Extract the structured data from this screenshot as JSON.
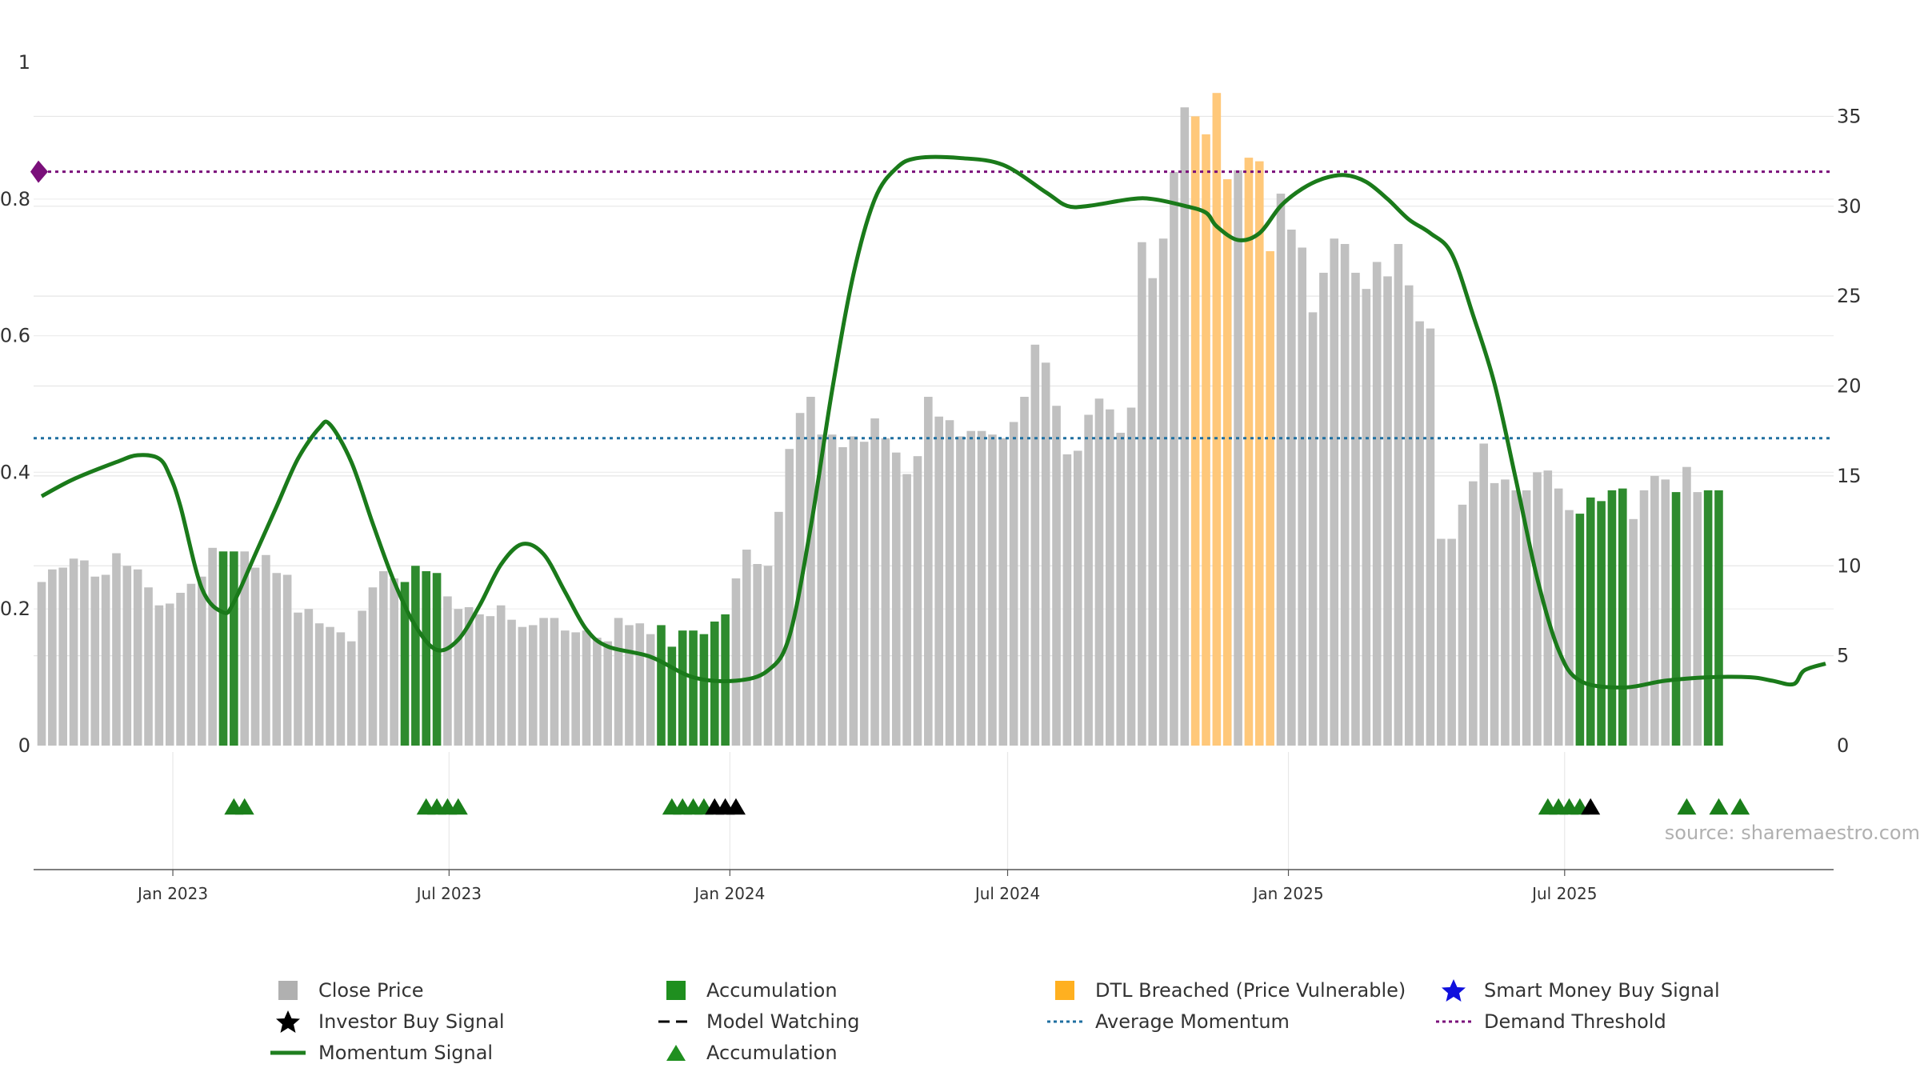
{
  "chart_data": {
    "type": "bar",
    "left_axis": {
      "ylim": [
        0,
        1
      ],
      "ticks": [
        "0",
        "0.2",
        "0.4",
        "0.6",
        "0.8",
        "1"
      ]
    },
    "right_axis": {
      "ylim": [
        0,
        38
      ],
      "ticks": [
        "0",
        "5",
        "10",
        "15",
        "20",
        "25",
        "30",
        "35"
      ]
    },
    "x_axis": {
      "ticks": [
        "Jan 2023",
        "Jul 2023",
        "Jan 2024",
        "Jul 2024",
        "Jan 2025",
        "Jul 2025"
      ]
    },
    "grid": true,
    "bars": {
      "start_date": "2022-10-07",
      "step_days": 7,
      "values": [
        9.1,
        9.8,
        9.9,
        10.4,
        10.3,
        9.4,
        9.5,
        10.7,
        10.0,
        9.8,
        8.8,
        7.8,
        7.9,
        8.5,
        9.0,
        9.4,
        11.0,
        10.8,
        10.8,
        10.8,
        9.9,
        10.6,
        9.6,
        9.5,
        7.4,
        7.6,
        6.8,
        6.6,
        6.3,
        5.8,
        7.5,
        8.8,
        9.7,
        9.3,
        9.1,
        10.0,
        9.7,
        9.6,
        8.3,
        7.6,
        7.7,
        7.3,
        7.2,
        7.8,
        7.0,
        6.6,
        6.7,
        7.1,
        7.1,
        6.4,
        6.3,
        6.4,
        6.0,
        5.8,
        7.1,
        6.7,
        6.8,
        6.2,
        6.7,
        5.5,
        6.4,
        6.4,
        6.2,
        6.9,
        7.3,
        9.3,
        10.9,
        10.1,
        10.0,
        13.0,
        16.5,
        18.5,
        19.4,
        17.3,
        17.3,
        16.6,
        17.2,
        16.9,
        18.2,
        17.1,
        16.3,
        15.1,
        16.1,
        19.4,
        18.3,
        18.1,
        17.2,
        17.5,
        17.5,
        17.3,
        17.1,
        18.0,
        19.4,
        22.3,
        21.3,
        18.9,
        16.2,
        16.4,
        18.4,
        19.3,
        18.7,
        17.4,
        18.8,
        28.0,
        26.0,
        28.2,
        31.9,
        35.5,
        35.0,
        34.0,
        36.3,
        31.5,
        32.0,
        32.7,
        32.5,
        27.5,
        30.7,
        28.7,
        27.7,
        24.1,
        26.3,
        28.2,
        27.9,
        26.3,
        25.4,
        26.9,
        26.1,
        27.9,
        25.6,
        23.6,
        23.2,
        11.5,
        11.5,
        13.4,
        14.7,
        16.8,
        14.6,
        14.8,
        14.2,
        14.2,
        15.2,
        15.3,
        14.3,
        13.1,
        12.9,
        13.8,
        13.6,
        14.2,
        14.3,
        12.6,
        14.2,
        15.0,
        14.8,
        14.1,
        15.5,
        14.1,
        14.2,
        14.2
      ],
      "colors": {
        "Close Price": "#c0c0c0",
        "Accumulation": "#2e8b2e",
        "DTL Breached (Price Vulnerable)": "#ffc87a"
      },
      "accumulation_ranges": [
        [
          17,
          18
        ],
        [
          34,
          37
        ],
        [
          58,
          64
        ],
        [
          144,
          148
        ],
        [
          153,
          153
        ],
        [
          156,
          157
        ]
      ],
      "dtl_ranges": [
        [
          108,
          111
        ],
        [
          113,
          115
        ]
      ]
    },
    "momentum": {
      "points": [
        [
          "2022-10-07",
          0.365
        ],
        [
          "2022-10-28",
          0.39
        ],
        [
          "2022-11-25",
          0.415
        ],
        [
          "2022-12-09",
          0.425
        ],
        [
          "2022-12-23",
          0.42
        ],
        [
          "2022-12-30",
          0.395
        ],
        [
          "2023-01-06",
          0.35
        ],
        [
          "2023-01-20",
          0.23
        ],
        [
          "2023-02-03",
          0.195
        ],
        [
          "2023-02-10",
          0.21
        ],
        [
          "2023-02-24",
          0.28
        ],
        [
          "2023-03-10",
          0.35
        ],
        [
          "2023-03-24",
          0.42
        ],
        [
          "2023-04-07",
          0.465
        ],
        [
          "2023-04-14",
          0.47
        ],
        [
          "2023-04-28",
          0.415
        ],
        [
          "2023-05-12",
          0.325
        ],
        [
          "2023-05-26",
          0.24
        ],
        [
          "2023-06-09",
          0.175
        ],
        [
          "2023-06-23",
          0.14
        ],
        [
          "2023-07-07",
          0.155
        ],
        [
          "2023-07-21",
          0.205
        ],
        [
          "2023-08-04",
          0.265
        ],
        [
          "2023-08-18",
          0.295
        ],
        [
          "2023-09-01",
          0.28
        ],
        [
          "2023-09-15",
          0.225
        ],
        [
          "2023-09-29",
          0.17
        ],
        [
          "2023-10-13",
          0.145
        ],
        [
          "2023-11-10",
          0.13
        ],
        [
          "2023-12-08",
          0.1
        ],
        [
          "2024-01-05",
          0.095
        ],
        [
          "2024-01-26",
          0.11
        ],
        [
          "2024-02-09",
          0.16
        ],
        [
          "2024-02-23",
          0.32
        ],
        [
          "2024-03-08",
          0.52
        ],
        [
          "2024-03-22",
          0.69
        ],
        [
          "2024-04-05",
          0.8
        ],
        [
          "2024-04-19",
          0.845
        ],
        [
          "2024-05-03",
          0.86
        ],
        [
          "2024-05-31",
          0.86
        ],
        [
          "2024-06-28",
          0.85
        ],
        [
          "2024-07-26",
          0.81
        ],
        [
          "2024-08-09",
          0.79
        ],
        [
          "2024-08-23",
          0.79
        ],
        [
          "2024-09-20",
          0.8
        ],
        [
          "2024-10-04",
          0.8
        ],
        [
          "2024-10-25",
          0.79
        ],
        [
          "2024-11-08",
          0.78
        ],
        [
          "2024-11-15",
          0.76
        ],
        [
          "2024-11-29",
          0.74
        ],
        [
          "2024-12-13",
          0.75
        ],
        [
          "2024-12-27",
          0.79
        ],
        [
          "2025-01-10",
          0.815
        ],
        [
          "2025-01-24",
          0.83
        ],
        [
          "2025-02-07",
          0.835
        ],
        [
          "2025-02-21",
          0.825
        ],
        [
          "2025-03-07",
          0.8
        ],
        [
          "2025-03-21",
          0.77
        ],
        [
          "2025-04-04",
          0.75
        ],
        [
          "2025-04-18",
          0.72
        ],
        [
          "2025-05-02",
          0.63
        ],
        [
          "2025-05-16",
          0.53
        ],
        [
          "2025-05-30",
          0.39
        ],
        [
          "2025-06-13",
          0.245
        ],
        [
          "2025-06-27",
          0.14
        ],
        [
          "2025-07-11",
          0.095
        ],
        [
          "2025-08-08",
          0.085
        ],
        [
          "2025-09-05",
          0.095
        ],
        [
          "2025-10-03",
          0.1
        ],
        [
          "2025-10-31",
          0.1
        ],
        [
          "2025-11-14",
          0.095
        ],
        [
          "2025-11-28",
          0.09
        ],
        [
          "2025-12-05",
          0.11
        ],
        [
          "2025-12-19",
          0.12
        ]
      ]
    },
    "average_momentum": 0.45,
    "demand_threshold": 0.84,
    "accumulation_markers": [
      "2023-02-10",
      "2023-02-17",
      "2023-06-16",
      "2023-06-23",
      "2023-06-30",
      "2023-07-07",
      "2023-11-24",
      "2023-12-01",
      "2023-12-08",
      "2023-12-15",
      "2025-06-20",
      "2025-06-27",
      "2025-07-04",
      "2025-07-11",
      "2025-09-19",
      "2025-10-10",
      "2025-10-24"
    ],
    "investor_buy_markers": [
      "2023-12-22",
      "2023-12-29",
      "2024-01-05",
      "2025-07-18"
    ],
    "demand_marker": "2022-10-07",
    "source": "source: sharemaestro.com",
    "legend": [
      {
        "label": "Close Price",
        "kind": "square",
        "color": "#b0b0b0"
      },
      {
        "label": "Accumulation",
        "kind": "square",
        "color": "#1f8f1f"
      },
      {
        "label": "DTL Breached (Price Vulnerable)",
        "kind": "square",
        "color": "#ffb020"
      },
      {
        "label": "Smart Money Buy Signal",
        "kind": "star",
        "color": "#1010dd"
      },
      {
        "label": "Investor Buy Signal",
        "kind": "star",
        "color": "#000000"
      },
      {
        "label": "Model Watching",
        "kind": "dash",
        "color": "#000000"
      },
      {
        "label": "Average Momentum",
        "kind": "dot",
        "color": "#1f6fa0"
      },
      {
        "label": "Demand Threshold",
        "kind": "dot",
        "color": "#7a0f7a"
      },
      {
        "label": "Momentum Signal",
        "kind": "line",
        "color": "#1f7f1f"
      },
      {
        "label": "Accumulation",
        "kind": "triangle",
        "color": "#1f8f1f"
      }
    ]
  }
}
